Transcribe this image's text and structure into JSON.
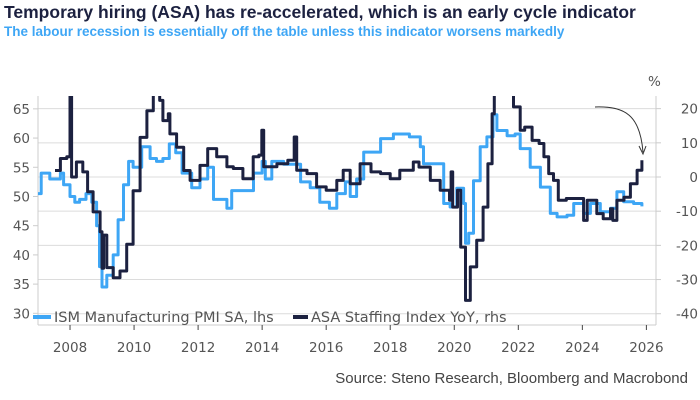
{
  "title": "Temporary hiring (ASA) has re-accelerated, which is an early cycle indicator",
  "subtitle": "The labour recession is essentially off the table unless this indicator worsens markedly",
  "source": "Source: Steno Research, Bloomberg and Macrobond",
  "chart_data": {
    "type": "line",
    "title": "Temporary hiring (ASA) has re-accelerated, which is an early cycle indicator",
    "subtitle": "The labour recession is essentially off the table unless this indicator worsens markedly",
    "x_ticks": [
      2008,
      2010,
      2012,
      2014,
      2016,
      2018,
      2020,
      2022,
      2024,
      2026
    ],
    "xlim": [
      2007,
      2026.3
    ],
    "left_axis": {
      "ticks": [
        30,
        35,
        40,
        45,
        50,
        55,
        60,
        65
      ],
      "ylim": [
        28,
        67.2
      ]
    },
    "right_axis": {
      "unit_label": "%",
      "ticks": [
        -40,
        -30,
        -20,
        -10,
        0,
        10,
        20
      ],
      "ylim": [
        -43.3,
        23.7
      ]
    },
    "grid": "horizontal, right axis ticks",
    "legend_placement": "bottom-left",
    "annotation": "arrow pointing to latest ASA value",
    "series": [
      {
        "name": "ISM Manufacturing PMI SA, lhs",
        "axis": "left",
        "color": "#3ea6f5",
        "x": [
          2007.0,
          2007.1,
          2007.37,
          2007.7,
          2007.8,
          2008.0,
          2008.15,
          2008.3,
          2008.5,
          2008.68,
          2008.83,
          2008.92,
          2009.0,
          2009.15,
          2009.35,
          2009.5,
          2009.67,
          2009.83,
          2009.97,
          2010.24,
          2010.5,
          2010.7,
          2010.9,
          2011.1,
          2011.3,
          2011.5,
          2011.8,
          2012.06,
          2012.3,
          2012.48,
          2012.74,
          2012.9,
          2013.05,
          2013.26,
          2013.52,
          2013.73,
          2014.0,
          2014.1,
          2014.3,
          2014.67,
          2014.93,
          2015.2,
          2015.5,
          2015.8,
          2016.1,
          2016.33,
          2016.6,
          2016.75,
          2016.95,
          2017.17,
          2017.7,
          2018.1,
          2018.6,
          2018.94,
          2019.04,
          2019.67,
          2019.87,
          2020.08,
          2020.29,
          2020.35,
          2020.45,
          2020.6,
          2020.81,
          2021.02,
          2021.21,
          2021.33,
          2021.65,
          2021.9,
          2022.06,
          2022.37,
          2022.69,
          2023.0,
          2023.21,
          2023.52,
          2023.73,
          2024.04,
          2024.25,
          2024.56,
          2024.88,
          2025.08,
          2025.29,
          2025.6,
          2025.86
        ],
        "values": [
          50.5,
          54,
          53,
          54,
          52,
          50,
          49,
          49.5,
          50.5,
          49,
          45,
          38,
          34.5,
          36.5,
          40,
          46,
          52,
          56,
          55,
          58.5,
          56.5,
          56,
          56.5,
          59,
          57.5,
          54,
          51.5,
          53,
          55,
          49.5,
          49.5,
          48,
          51,
          51,
          51,
          54,
          56,
          53,
          56,
          55.5,
          55.5,
          52.5,
          51.5,
          49,
          48,
          50.5,
          52.5,
          50,
          53,
          57.6,
          59.9,
          60.7,
          60.2,
          58.5,
          55.6,
          48.8,
          48.2,
          51.4,
          48.8,
          42,
          43.7,
          52.7,
          58.5,
          60.2,
          64,
          61.3,
          60.4,
          60.7,
          58.2,
          55,
          51.6,
          47.1,
          46.5,
          46.8,
          48.8,
          47.1,
          48.8,
          47.4,
          48,
          50.8,
          49.1,
          48.8,
          48.3
        ]
      },
      {
        "name": "ASA Staffing Index YoY, rhs",
        "axis": "right",
        "color": "#1c2140",
        "x": [
          2007.53,
          2007.7,
          2007.9,
          2008.0,
          2008.05,
          2008.2,
          2008.4,
          2008.55,
          2008.72,
          2008.94,
          2009.0,
          2009.05,
          2009.15,
          2009.35,
          2009.56,
          2009.77,
          2009.97,
          2010.19,
          2010.4,
          2010.6,
          2010.8,
          2010.9,
          2011.07,
          2011.12,
          2011.33,
          2011.55,
          2011.75,
          2012.06,
          2012.3,
          2012.58,
          2012.9,
          2013.1,
          2013.4,
          2013.72,
          2013.9,
          2013.99,
          2014.05,
          2014.46,
          2014.8,
          2015.0,
          2015.08,
          2015.4,
          2015.7,
          2016.0,
          2016.33,
          2016.53,
          2016.75,
          2017.06,
          2017.4,
          2017.7,
          2018.0,
          2018.3,
          2018.72,
          2018.9,
          2019.25,
          2019.56,
          2019.85,
          2019.9,
          2019.95,
          2020.1,
          2020.2,
          2020.35,
          2020.5,
          2020.7,
          2020.9,
          2021.05,
          2021.18,
          2021.25,
          2021.5,
          2021.8,
          2021.85,
          2022.06,
          2022.2,
          2022.43,
          2022.65,
          2022.8,
          2022.95,
          2023.1,
          2023.25,
          2023.5,
          2023.83,
          2024.04,
          2024.15,
          2024.45,
          2024.65,
          2024.88,
          2024.95,
          2025.08,
          2025.3,
          2025.5,
          2025.71,
          2025.86
        ],
        "values": [
          1.9,
          5.4,
          5.9,
          24,
          0,
          4.4,
          1.5,
          -4.3,
          -10.2,
          -16,
          -26.7,
          -17,
          -26.5,
          -29.5,
          -27.5,
          -19.7,
          -4,
          11.6,
          19.4,
          26,
          22.4,
          16.5,
          18.5,
          12.6,
          8.7,
          1.9,
          -1,
          3.4,
          8.3,
          5.9,
          3,
          2.5,
          -0.5,
          5.9,
          6.4,
          13.7,
          3,
          3.9,
          4.9,
          11.7,
          2,
          1,
          -2.9,
          -3.9,
          -1,
          2,
          -2,
          3.9,
          1.5,
          1,
          -0.5,
          2,
          4.4,
          2.9,
          -1,
          -3.9,
          -6.8,
          1.5,
          -8.8,
          -3.9,
          -20.5,
          -36.1,
          -26.3,
          -18.5,
          -8.8,
          3.9,
          18.5,
          30,
          32,
          28,
          20.5,
          13.7,
          14.6,
          10.7,
          9.8,
          5.9,
          1,
          -1,
          -6.8,
          -6.3,
          -6.3,
          -12.7,
          -6.8,
          -10.7,
          -12.2,
          -9.3,
          -12.7,
          -6.8,
          -5.9,
          -2,
          2,
          4.9
        ]
      }
    ]
  }
}
